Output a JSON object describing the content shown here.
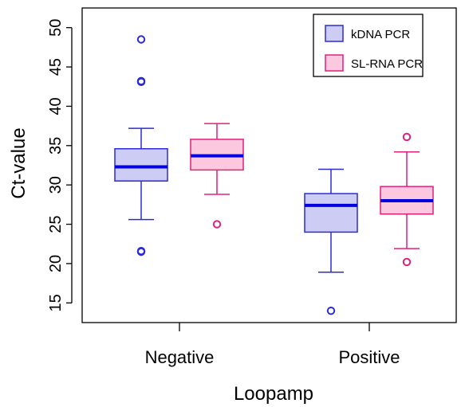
{
  "chart_data": {
    "type": "boxplot",
    "xlabel": "Loopamp",
    "ylabel": "Ct-value",
    "categories": [
      "Negative",
      "Positive"
    ],
    "ylim": [
      12.5,
      52.5
    ],
    "yticks": [
      15,
      20,
      25,
      30,
      35,
      40,
      45,
      50
    ],
    "legend_position": "top-right",
    "series": [
      {
        "name": "kDNA PCR",
        "stroke": "#2b2bd6",
        "fill": "#ccccf5",
        "median_color": "#0000e0",
        "boxes": [
          {
            "category": "Negative",
            "whisker_low": 25.6,
            "q1": 30.5,
            "median": 32.3,
            "q3": 34.6,
            "whisker_high": 37.2,
            "outliers": [
              48.5,
              43.2,
              43.1,
              21.6,
              21.5
            ]
          },
          {
            "category": "Positive",
            "whisker_low": 18.9,
            "q1": 24.0,
            "median": 27.4,
            "q3": 28.9,
            "whisker_high": 32.0,
            "outliers": [
              14.0
            ]
          }
        ]
      },
      {
        "name": "SL-RNA PCR",
        "stroke": "#e0207a",
        "fill": "#fcc8e0",
        "median_color": "#0000e0",
        "boxes": [
          {
            "category": "Negative",
            "whisker_low": 28.8,
            "q1": 31.9,
            "median": 33.7,
            "q3": 35.8,
            "whisker_high": 37.8,
            "outliers": [
              25.0
            ]
          },
          {
            "category": "Positive",
            "whisker_low": 21.9,
            "q1": 26.3,
            "median": 28.0,
            "q3": 29.8,
            "whisker_high": 34.2,
            "outliers": [
              36.1,
              20.2
            ]
          }
        ]
      }
    ]
  }
}
